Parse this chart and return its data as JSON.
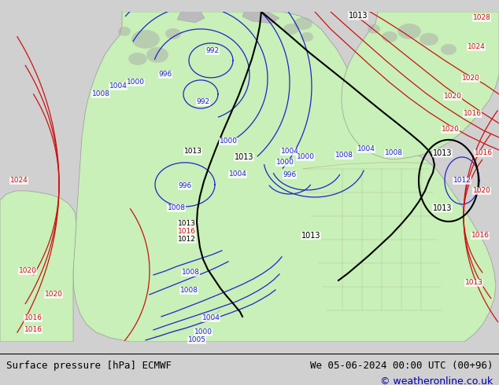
{
  "title_left": "Surface pressure [hPa] ECMWF",
  "title_right": "We 05-06-2024 00:00 UTC (00+96)",
  "copyright": "© weatheronline.co.uk",
  "bg_color": "#d0d0d0",
  "land_color": "#c8f0b8",
  "ocean_color": "#d0d0d0",
  "isobar_blue": "#2222cc",
  "isobar_red": "#cc1111",
  "isobar_black": "#000000",
  "state_border": "#b09878",
  "label_bg": "#ffffff",
  "figsize": [
    6.34,
    4.9
  ],
  "dpi": 100
}
